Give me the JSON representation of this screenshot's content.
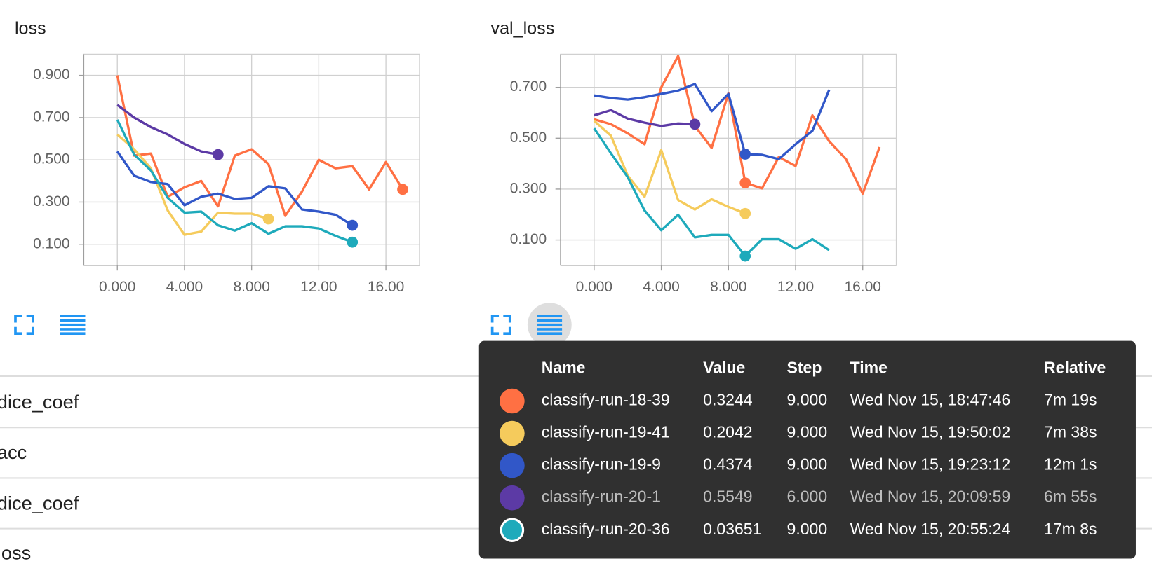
{
  "chart_data": [
    {
      "type": "line",
      "title": "loss",
      "x": [
        0,
        1,
        2,
        3,
        4,
        5,
        6,
        7,
        8,
        9,
        10,
        11,
        12,
        13,
        14,
        15,
        16,
        17
      ],
      "xlim": [
        -2,
        18
      ],
      "ylim": [
        0,
        1
      ],
      "xticks": [
        {
          "value": 0,
          "label": "0.000"
        },
        {
          "value": 4,
          "label": "4.000"
        },
        {
          "value": 8,
          "label": "8.000"
        },
        {
          "value": 12,
          "label": "12.00"
        },
        {
          "value": 16,
          "label": "16.00"
        }
      ],
      "yticks": [
        {
          "value": 0.1,
          "label": "0.100"
        },
        {
          "value": 0.3,
          "label": "0.300"
        },
        {
          "value": 0.5,
          "label": "0.500"
        },
        {
          "value": 0.7,
          "label": "0.700"
        },
        {
          "value": 0.9,
          "label": "0.900"
        }
      ],
      "grid": true,
      "series": [
        {
          "color": "#ff7043",
          "values": [
            0.9,
            0.52,
            0.53,
            0.325,
            0.37,
            0.4,
            0.28,
            0.52,
            0.55,
            0.48,
            0.235,
            0.35,
            0.5,
            0.46,
            0.47,
            0.36,
            0.49,
            0.36
          ]
        },
        {
          "color": "#f5cb5c",
          "values": [
            0.62,
            0.55,
            0.46,
            0.26,
            0.145,
            0.16,
            0.25,
            0.245,
            0.245,
            0.22,
            null,
            null,
            null,
            null,
            null,
            null,
            null,
            null
          ]
        },
        {
          "color": "#3157c8",
          "values": [
            0.54,
            0.425,
            0.395,
            0.385,
            0.285,
            0.325,
            0.34,
            0.315,
            0.32,
            0.375,
            0.365,
            0.265,
            0.255,
            0.24,
            0.19,
            null,
            null,
            null
          ]
        },
        {
          "color": "#5c3aa5",
          "values": [
            0.76,
            0.7,
            0.655,
            0.62,
            0.575,
            0.54,
            0.525,
            null,
            null,
            null,
            null,
            null,
            null,
            null,
            null,
            null,
            null,
            null
          ]
        },
        {
          "color": "#1eaabb",
          "values": [
            0.69,
            0.525,
            0.45,
            0.32,
            0.25,
            0.255,
            0.19,
            0.165,
            0.2,
            0.15,
            0.185,
            0.185,
            0.175,
            0.14,
            0.11,
            null,
            null,
            null
          ]
        }
      ]
    },
    {
      "type": "line",
      "title": "val_loss",
      "x": [
        0,
        1,
        2,
        3,
        4,
        5,
        6,
        7,
        8,
        9,
        10,
        11,
        12,
        13,
        14,
        15,
        16,
        17
      ],
      "xlim": [
        -2,
        18
      ],
      "ylim": [
        0,
        0.83
      ],
      "xticks": [
        {
          "value": 0,
          "label": "0.000"
        },
        {
          "value": 4,
          "label": "4.000"
        },
        {
          "value": 8,
          "label": "8.000"
        },
        {
          "value": 12,
          "label": "12.00"
        },
        {
          "value": 16,
          "label": "16.00"
        }
      ],
      "yticks": [
        {
          "value": 0.1,
          "label": "0.100"
        },
        {
          "value": 0.3,
          "label": "0.300"
        },
        {
          "value": 0.5,
          "label": "0.500"
        },
        {
          "value": 0.7,
          "label": "0.700"
        }
      ],
      "grid": true,
      "series": [
        {
          "color": "#ff7043",
          "values": [
            0.574,
            0.555,
            0.519,
            0.476,
            0.7,
            0.823,
            0.548,
            0.462,
            0.677,
            0.3244,
            0.303,
            0.426,
            0.391,
            0.59,
            0.488,
            0.418,
            0.282,
            0.465
          ]
        },
        {
          "color": "#f5cb5c",
          "values": [
            0.568,
            0.51,
            0.353,
            0.27,
            0.453,
            0.257,
            0.22,
            0.26,
            0.23,
            0.2042,
            null,
            null,
            null,
            null,
            null,
            null,
            null,
            null
          ]
        },
        {
          "color": "#3157c8",
          "values": [
            0.668,
            0.658,
            0.652,
            0.661,
            0.674,
            0.687,
            0.713,
            0.606,
            0.674,
            0.4374,
            0.435,
            0.418,
            0.476,
            0.529,
            0.69,
            null,
            null,
            null
          ]
        },
        {
          "color": "#5c3aa5",
          "values": [
            0.59,
            0.61,
            0.577,
            0.561,
            0.548,
            0.558,
            0.5549,
            null,
            null,
            null,
            null,
            null,
            null,
            null,
            null,
            null,
            null,
            null
          ]
        },
        {
          "color": "#1eaabb",
          "values": [
            0.539,
            0.441,
            0.347,
            0.216,
            0.138,
            0.199,
            0.11,
            0.12,
            0.12,
            0.03651,
            0.103,
            0.103,
            0.065,
            0.103,
            0.06,
            null,
            null,
            null
          ]
        }
      ]
    }
  ],
  "sections": [
    "dice_coef",
    "acc",
    "dice_coef",
    "loss"
  ],
  "tooltip": {
    "headers": [
      "Name",
      "Value",
      "Step",
      "Time",
      "Relative"
    ],
    "rows": [
      {
        "name": "classify-run-18-39",
        "value": 0.3244,
        "step": {
          "value": 9,
          "label": "9.000"
        },
        "time": "Wed Nov 15, 18:47:46",
        "relative": "7m 19s"
      },
      {
        "name": "classify-run-19-41",
        "value": 0.2042,
        "step": {
          "value": 9,
          "label": "9.000"
        },
        "time": "Wed Nov 15, 19:50:02",
        "relative": "7m 38s"
      },
      {
        "name": "classify-run-19-9",
        "value": 0.4374,
        "step": {
          "value": 9,
          "label": "9.000"
        },
        "time": "Wed Nov 15, 19:23:12",
        "relative": "12m 1s"
      },
      {
        "name": "classify-run-20-1",
        "value": 0.5549,
        "step": {
          "value": 6,
          "label": "6.000"
        },
        "time": "Wed Nov 15, 20:09:59",
        "relative": "6m 55s"
      },
      {
        "name": "classify-run-20-36",
        "value": 0.03651,
        "step": {
          "value": 9,
          "label": "9.000"
        },
        "time": "Wed Nov 15, 20:55:24",
        "relative": "17m 8s"
      }
    ]
  }
}
